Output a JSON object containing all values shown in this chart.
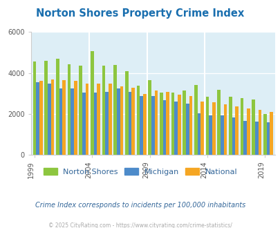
{
  "title": "Norton Shores Property Crime Index",
  "title_color": "#1a6faf",
  "subtitle": "Crime Index corresponds to incidents per 100,000 inhabitants",
  "subtitle_color": "#336699",
  "footer": "© 2025 CityRating.com - https://www.cityrating.com/crime-statistics/",
  "footer_color": "#aaaaaa",
  "years": [
    1999,
    2000,
    2001,
    2002,
    2003,
    2004,
    2005,
    2006,
    2007,
    2008,
    2009,
    2010,
    2011,
    2012,
    2013,
    2014,
    2015,
    2016,
    2017,
    2018,
    2019
  ],
  "norton_shores": [
    4550,
    4600,
    4700,
    4430,
    4350,
    5050,
    4350,
    4380,
    4080,
    3380,
    3650,
    3060,
    3050,
    3150,
    3430,
    2850,
    3170,
    2850,
    2780,
    2700,
    1990
  ],
  "michigan": [
    3550,
    3470,
    3250,
    3230,
    3030,
    3040,
    3080,
    3230,
    3080,
    2880,
    2870,
    2660,
    2600,
    2510,
    2040,
    1930,
    1920,
    1840,
    1650,
    1640,
    1600
  ],
  "national": [
    3620,
    3680,
    3660,
    3620,
    3480,
    3490,
    3480,
    3340,
    3280,
    2990,
    3130,
    3070,
    2940,
    2870,
    2600,
    2570,
    2470,
    2360,
    2260,
    2200,
    2100
  ],
  "norton_color": "#8dc63f",
  "michigan_color": "#4d8bca",
  "national_color": "#f5a623",
  "bg_color": "#ddeef6",
  "ylim": [
    0,
    6000
  ],
  "yticks": [
    0,
    2000,
    4000,
    6000
  ],
  "bar_width": 0.28,
  "tick_years": [
    1999,
    2004,
    2009,
    2014,
    2019
  ],
  "legend_labels": [
    "Norton Shores",
    "Michigan",
    "National"
  ]
}
